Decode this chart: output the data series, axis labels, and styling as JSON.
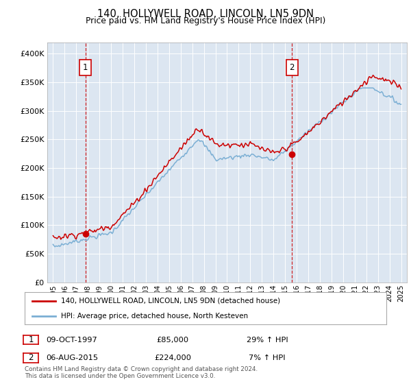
{
  "title": "140, HOLLYWELL ROAD, LINCOLN, LN5 9DN",
  "subtitle": "Price paid vs. HM Land Registry's House Price Index (HPI)",
  "hpi_label": "HPI: Average price, detached house, North Kesteven",
  "price_label": "140, HOLLYWELL ROAD, LINCOLN, LN5 9DN (detached house)",
  "red_color": "#cc0000",
  "blue_color": "#7bafd4",
  "bg_color": "#dce6f1",
  "transaction1": {
    "date": 1997.78,
    "price": 85000,
    "label": "1",
    "pct": "29% ↑ HPI",
    "date_str": "09-OCT-1997"
  },
  "transaction2": {
    "date": 2015.59,
    "price": 224000,
    "label": "2",
    "pct": "7% ↑ HPI",
    "date_str": "06-AUG-2015"
  },
  "ylim": [
    0,
    420000
  ],
  "xlim": [
    1994.5,
    2025.5
  ],
  "yticks": [
    0,
    50000,
    100000,
    150000,
    200000,
    250000,
    300000,
    350000,
    400000
  ],
  "footer": "Contains HM Land Registry data © Crown copyright and database right 2024.\nThis data is licensed under the Open Government Licence v3.0."
}
